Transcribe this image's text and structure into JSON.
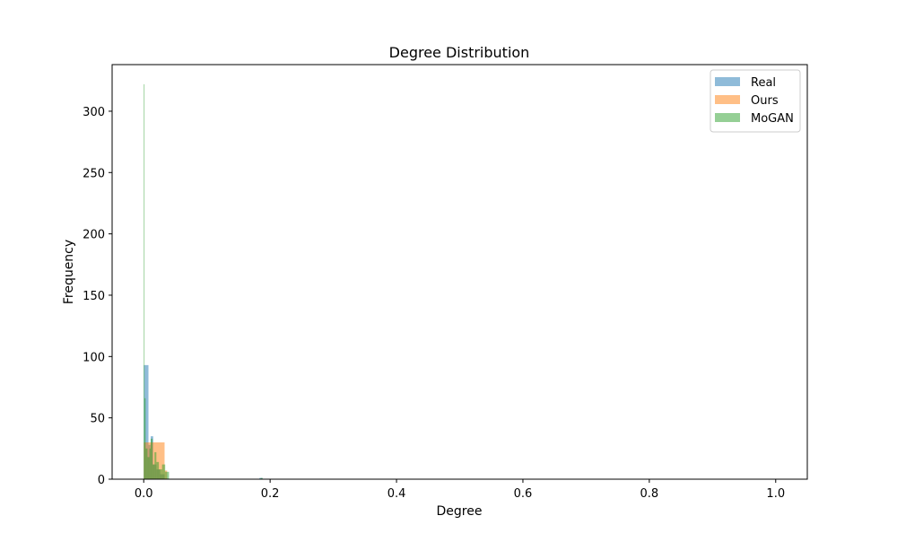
{
  "chart_data": {
    "type": "histogram",
    "title": "Degree Distribution",
    "xlabel": "Degree",
    "ylabel": "Frequency",
    "xlim": [
      -0.05,
      1.05
    ],
    "ylim": [
      0,
      338
    ],
    "xticks": [
      0.0,
      0.2,
      0.4,
      0.6,
      0.8,
      1.0
    ],
    "xtick_labels": [
      "0.0",
      "0.2",
      "0.4",
      "0.6",
      "0.8",
      "1.0"
    ],
    "yticks": [
      0,
      50,
      100,
      150,
      200,
      250,
      300
    ],
    "ytick_labels": [
      "0",
      "50",
      "100",
      "150",
      "200",
      "250",
      "300"
    ],
    "grid": false,
    "legend_position": "top-right",
    "series": [
      {
        "name": "Real",
        "color": "#1f77b4",
        "alpha": 0.5,
        "bins": [
          {
            "x0": 0.0,
            "x1": 0.0075,
            "count": 93
          },
          {
            "x0": 0.0075,
            "x1": 0.011,
            "count": 28
          },
          {
            "x0": 0.011,
            "x1": 0.015,
            "count": 35
          },
          {
            "x0": 0.015,
            "x1": 0.02,
            "count": 12
          },
          {
            "x0": 0.02,
            "x1": 0.026,
            "count": 8
          },
          {
            "x0": 0.026,
            "x1": 0.033,
            "count": 4
          },
          {
            "x0": 0.183,
            "x1": 0.188,
            "count": 1
          }
        ]
      },
      {
        "name": "Ours",
        "color": "#ff7f0e",
        "alpha": 0.5,
        "bins": [
          {
            "x0": 0.0,
            "x1": 0.005,
            "count": 30
          },
          {
            "x0": 0.005,
            "x1": 0.033,
            "count": 30
          },
          {
            "x0": 0.033,
            "x1": 0.037,
            "count": 7
          }
        ]
      },
      {
        "name": "MoGAN",
        "color": "#2ca02c",
        "alpha": 0.5,
        "bins": [
          {
            "x0": 0.0,
            "x1": 0.001,
            "count": 322
          },
          {
            "x0": 0.001,
            "x1": 0.003,
            "count": 66
          },
          {
            "x0": 0.003,
            "x1": 0.006,
            "count": 25
          },
          {
            "x0": 0.006,
            "x1": 0.009,
            "count": 18
          },
          {
            "x0": 0.009,
            "x1": 0.011,
            "count": 25
          },
          {
            "x0": 0.011,
            "x1": 0.014,
            "count": 33
          },
          {
            "x0": 0.014,
            "x1": 0.017,
            "count": 12
          },
          {
            "x0": 0.017,
            "x1": 0.02,
            "count": 22
          },
          {
            "x0": 0.02,
            "x1": 0.024,
            "count": 14
          },
          {
            "x0": 0.024,
            "x1": 0.029,
            "count": 8
          },
          {
            "x0": 0.029,
            "x1": 0.034,
            "count": 12
          },
          {
            "x0": 0.034,
            "x1": 0.04,
            "count": 6
          },
          {
            "x0": 0.185,
            "x1": 0.188,
            "count": 1
          }
        ]
      }
    ]
  }
}
